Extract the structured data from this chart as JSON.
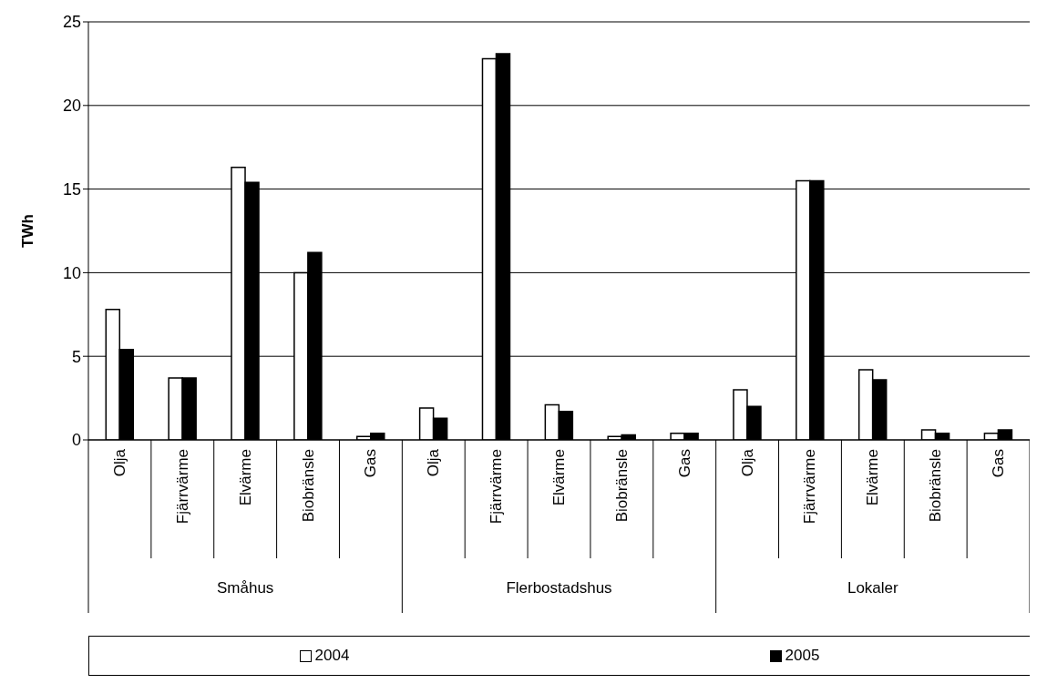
{
  "chart_data": {
    "type": "bar",
    "ylabel": "TWh",
    "categories": [
      "Olja",
      "Fjärrvärme",
      "Elvärme",
      "Biobränsle",
      "Gas",
      "Olja",
      "Fjärrvärme",
      "Elvärme",
      "Biobränsle",
      "Gas",
      "Olja",
      "Fjärrvärme",
      "Elvärme",
      "Biobränsle",
      "Gas"
    ],
    "series": [
      {
        "name": "2004",
        "color": "#ffffff",
        "values": [
          7.8,
          3.7,
          16.3,
          10.0,
          0.2,
          1.9,
          22.8,
          2.1,
          0.2,
          0.4,
          3.0,
          15.5,
          4.2,
          0.6,
          0.4
        ]
      },
      {
        "name": "2005",
        "color": "#000000",
        "values": [
          5.4,
          3.7,
          15.4,
          11.2,
          0.4,
          1.3,
          23.1,
          1.7,
          0.3,
          0.4,
          2.0,
          15.5,
          3.6,
          0.4,
          0.6
        ]
      }
    ],
    "annotations": [
      "Småhus",
      "Flerbostadshus",
      "Lokaler"
    ],
    "ylim": [
      0,
      25
    ],
    "yticks": [
      0,
      5,
      10,
      15,
      20,
      25
    ],
    "grid": "y",
    "legend": "bottom"
  }
}
